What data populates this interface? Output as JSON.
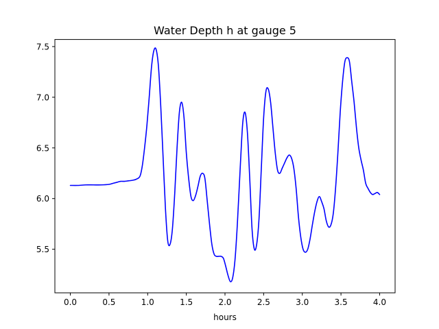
{
  "chart_data": {
    "type": "line",
    "title": "Water Depth h at gauge 5",
    "xlabel": "hours",
    "ylabel": "",
    "xlim": [
      -0.2,
      4.2
    ],
    "ylim": [
      5.07,
      7.57
    ],
    "xticks": [
      0.0,
      0.5,
      1.0,
      1.5,
      2.0,
      2.5,
      3.0,
      3.5,
      4.0
    ],
    "xtick_labels": [
      "0.0",
      "0.5",
      "1.0",
      "1.5",
      "2.0",
      "2.5",
      "3.0",
      "3.5",
      "4.0"
    ],
    "yticks": [
      5.5,
      6.0,
      6.5,
      7.0,
      7.5
    ],
    "ytick_labels": [
      "5.5",
      "6.0",
      "6.5",
      "7.0",
      "7.5"
    ],
    "grid": false,
    "legend": false,
    "series": [
      {
        "color": "#0000ff",
        "x": [
          0.0,
          0.1,
          0.2,
          0.3,
          0.4,
          0.5,
          0.55,
          0.6,
          0.65,
          0.7,
          0.75,
          0.8,
          0.85,
          0.9,
          0.93,
          0.96,
          0.99,
          1.02,
          1.05,
          1.08,
          1.11,
          1.14,
          1.17,
          1.2,
          1.23,
          1.26,
          1.29,
          1.32,
          1.35,
          1.38,
          1.41,
          1.44,
          1.47,
          1.5,
          1.53,
          1.56,
          1.59,
          1.62,
          1.65,
          1.68,
          1.71,
          1.74,
          1.77,
          1.8,
          1.83,
          1.86,
          1.89,
          1.92,
          1.95,
          1.98,
          2.01,
          2.04,
          2.07,
          2.1,
          2.13,
          2.16,
          2.2,
          2.23,
          2.26,
          2.29,
          2.32,
          2.35,
          2.38,
          2.41,
          2.44,
          2.47,
          2.5,
          2.53,
          2.56,
          2.59,
          2.62,
          2.65,
          2.68,
          2.71,
          2.74,
          2.77,
          2.8,
          2.83,
          2.86,
          2.89,
          2.92,
          2.95,
          2.98,
          3.01,
          3.04,
          3.07,
          3.1,
          3.13,
          3.16,
          3.19,
          3.22,
          3.25,
          3.28,
          3.31,
          3.34,
          3.37,
          3.4,
          3.43,
          3.46,
          3.49,
          3.52,
          3.55,
          3.58,
          3.61,
          3.64,
          3.67,
          3.7,
          3.73,
          3.76,
          3.79,
          3.82,
          3.85,
          3.88,
          3.91,
          3.94,
          3.97,
          4.0
        ],
        "y": [
          6.13,
          6.13,
          6.135,
          6.135,
          6.135,
          6.14,
          6.15,
          6.16,
          6.17,
          6.17,
          6.175,
          6.18,
          6.19,
          6.22,
          6.32,
          6.5,
          6.72,
          7.0,
          7.3,
          7.46,
          7.47,
          7.3,
          6.9,
          6.4,
          5.9,
          5.58,
          5.55,
          5.7,
          6.05,
          6.5,
          6.85,
          6.95,
          6.8,
          6.45,
          6.2,
          6.02,
          5.98,
          6.03,
          6.12,
          6.22,
          6.25,
          6.2,
          5.98,
          5.75,
          5.55,
          5.45,
          5.43,
          5.43,
          5.43,
          5.41,
          5.33,
          5.24,
          5.18,
          5.22,
          5.4,
          5.75,
          6.35,
          6.75,
          6.85,
          6.65,
          6.2,
          5.7,
          5.5,
          5.55,
          5.8,
          6.3,
          6.8,
          7.06,
          7.08,
          6.95,
          6.7,
          6.45,
          6.28,
          6.25,
          6.3,
          6.35,
          6.4,
          6.43,
          6.4,
          6.3,
          6.1,
          5.82,
          5.62,
          5.5,
          5.47,
          5.5,
          5.6,
          5.74,
          5.87,
          5.97,
          6.02,
          5.97,
          5.9,
          5.78,
          5.72,
          5.74,
          5.85,
          6.1,
          6.45,
          6.85,
          7.15,
          7.35,
          7.39,
          7.35,
          7.15,
          6.95,
          6.7,
          6.5,
          6.38,
          6.28,
          6.15,
          6.1,
          6.06,
          6.04,
          6.05,
          6.06,
          6.04
        ]
      }
    ]
  }
}
